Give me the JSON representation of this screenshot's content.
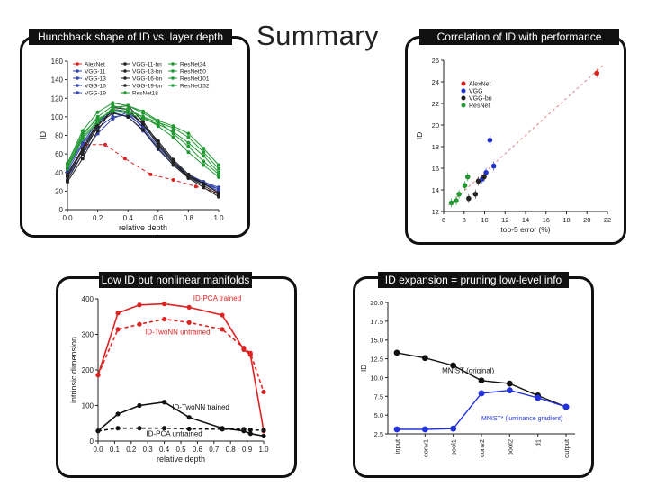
{
  "page_title": "Summary",
  "panels": {
    "tl_title": "Hunchback shape of ID vs. layer depth",
    "tr_title": "Correlation of ID with performance",
    "bl_title": "Low ID but nonlinear manifolds",
    "br_title": "ID expansion = pruning low-level info"
  },
  "chart_data": [
    {
      "type": "line",
      "title": "Hunchback shape of ID vs. layer depth",
      "xlabel": "relative depth",
      "ylabel": "ID",
      "xlim": [
        0,
        1
      ],
      "ylim": [
        0,
        160
      ],
      "xticks": [
        "0.0",
        "0.2",
        "0.4",
        "0.6",
        "0.8",
        "1.0"
      ],
      "yticks": [
        "0",
        "20",
        "40",
        "60",
        "80",
        "100",
        "120",
        "140",
        "160"
      ],
      "legend": [
        {
          "label": "AlexNet",
          "color": "#dd2222"
        },
        {
          "label": "VGG-11",
          "color": "#3344aa"
        },
        {
          "label": "VGG-13",
          "color": "#3344aa"
        },
        {
          "label": "VGG-16",
          "color": "#3344aa"
        },
        {
          "label": "VGG-19",
          "color": "#3344aa"
        },
        {
          "label": "VGG-11-bn",
          "color": "#222222"
        },
        {
          "label": "VGG-13-bn",
          "color": "#222222"
        },
        {
          "label": "VGG-16-bn",
          "color": "#222222"
        },
        {
          "label": "VGG-19-bn",
          "color": "#222222"
        },
        {
          "label": "ResNet18",
          "color": "#229933"
        },
        {
          "label": "ResNet34",
          "color": "#229933"
        },
        {
          "label": "ResNet50",
          "color": "#229933"
        },
        {
          "label": "ResNet101",
          "color": "#229933"
        },
        {
          "label": "ResNet152",
          "color": "#229933"
        }
      ],
      "series": [
        {
          "name": "AlexNet",
          "color": "#dd2222",
          "dashed": true,
          "x": [
            0,
            0.12,
            0.25,
            0.38,
            0.55,
            0.7,
            0.85,
            1.0
          ],
          "y": [
            35,
            70,
            70,
            55,
            38,
            32,
            25,
            18
          ]
        },
        {
          "name": "VGG-11",
          "color": "#3344aa",
          "x": [
            0,
            0.1,
            0.2,
            0.3,
            0.4,
            0.5,
            0.6,
            0.7,
            0.8,
            0.9,
            1.0
          ],
          "y": [
            35,
            60,
            82,
            98,
            105,
            92,
            70,
            50,
            35,
            28,
            20
          ]
        },
        {
          "name": "VGG-13",
          "color": "#3344aa",
          "x": [
            0,
            0.1,
            0.2,
            0.3,
            0.4,
            0.5,
            0.6,
            0.7,
            0.8,
            0.9,
            1.0
          ],
          "y": [
            40,
            65,
            88,
            100,
            102,
            90,
            72,
            52,
            38,
            30,
            22
          ]
        },
        {
          "name": "VGG-16",
          "color": "#3344aa",
          "x": [
            0,
            0.1,
            0.2,
            0.3,
            0.4,
            0.5,
            0.6,
            0.7,
            0.8,
            0.9,
            1.0
          ],
          "y": [
            45,
            72,
            95,
            105,
            100,
            85,
            65,
            48,
            35,
            28,
            22
          ]
        },
        {
          "name": "VGG-19",
          "color": "#3344aa",
          "x": [
            0,
            0.1,
            0.2,
            0.3,
            0.4,
            0.5,
            0.6,
            0.7,
            0.8,
            0.9,
            1.0
          ],
          "y": [
            42,
            70,
            92,
            108,
            104,
            88,
            68,
            50,
            36,
            30,
            24
          ]
        },
        {
          "name": "VGG-11-bn",
          "color": "#222222",
          "x": [
            0,
            0.1,
            0.2,
            0.3,
            0.4,
            0.5,
            0.6,
            0.7,
            0.8,
            0.9,
            1.0
          ],
          "y": [
            30,
            55,
            85,
            110,
            112,
            95,
            72,
            52,
            36,
            28,
            18
          ]
        },
        {
          "name": "VGG-13-bn",
          "color": "#222222",
          "x": [
            0,
            0.1,
            0.2,
            0.3,
            0.4,
            0.5,
            0.6,
            0.7,
            0.8,
            0.9,
            1.0
          ],
          "y": [
            32,
            60,
            90,
            108,
            106,
            92,
            70,
            50,
            35,
            26,
            16
          ]
        },
        {
          "name": "VGG-16-bn",
          "color": "#222222",
          "x": [
            0,
            0.1,
            0.2,
            0.3,
            0.4,
            0.5,
            0.6,
            0.7,
            0.8,
            0.9,
            1.0
          ],
          "y": [
            36,
            64,
            92,
            104,
            100,
            86,
            66,
            48,
            34,
            24,
            14
          ]
        },
        {
          "name": "VGG-19-bn",
          "color": "#222222",
          "x": [
            0,
            0.1,
            0.2,
            0.3,
            0.4,
            0.5,
            0.6,
            0.7,
            0.8,
            0.9,
            1.0
          ],
          "y": [
            38,
            66,
            94,
            110,
            108,
            92,
            74,
            54,
            38,
            28,
            18
          ]
        },
        {
          "name": "ResNet18",
          "color": "#229933",
          "x": [
            0,
            0.1,
            0.2,
            0.3,
            0.4,
            0.5,
            0.6,
            0.7,
            0.8,
            0.9,
            1.0
          ],
          "y": [
            45,
            80,
            100,
            112,
            108,
            100,
            90,
            78,
            62,
            48,
            35
          ]
        },
        {
          "name": "ResNet34",
          "color": "#229933",
          "x": [
            0,
            0.1,
            0.2,
            0.3,
            0.4,
            0.5,
            0.6,
            0.7,
            0.8,
            0.9,
            1.0
          ],
          "y": [
            50,
            85,
            105,
            115,
            112,
            104,
            95,
            82,
            68,
            52,
            38
          ]
        },
        {
          "name": "ResNet50",
          "color": "#229933",
          "x": [
            0,
            0.1,
            0.2,
            0.3,
            0.4,
            0.5,
            0.6,
            0.7,
            0.8,
            0.9,
            1.0
          ],
          "y": [
            48,
            82,
            98,
            106,
            104,
            98,
            92,
            84,
            72,
            58,
            40
          ]
        },
        {
          "name": "ResNet101",
          "color": "#229933",
          "x": [
            0,
            0.1,
            0.2,
            0.3,
            0.4,
            0.5,
            0.6,
            0.7,
            0.8,
            0.9,
            1.0
          ],
          "y": [
            46,
            78,
            96,
            108,
            106,
            100,
            94,
            88,
            78,
            62,
            44
          ]
        },
        {
          "name": "ResNet152",
          "color": "#229933",
          "x": [
            0,
            0.1,
            0.2,
            0.3,
            0.4,
            0.5,
            0.6,
            0.7,
            0.8,
            0.9,
            1.0
          ],
          "y": [
            44,
            76,
            94,
            110,
            112,
            106,
            96,
            90,
            82,
            66,
            48
          ]
        }
      ]
    },
    {
      "type": "scatter",
      "title": "Correlation of ID with performance",
      "xlabel": "top-5 error (%)",
      "ylabel": "ID",
      "xlim": [
        5,
        22
      ],
      "ylim": [
        12,
        26
      ],
      "xticks": [
        "6",
        "8",
        "10",
        "12",
        "14",
        "16",
        "18",
        "20",
        "22"
      ],
      "yticks": [
        "12",
        "14",
        "16",
        "18",
        "20",
        "22",
        "24",
        "26"
      ],
      "legend": [
        {
          "label": "AlexNet",
          "color": "#dd2222"
        },
        {
          "label": "VGG",
          "color": "#2233cc"
        },
        {
          "label": "VGG-bn",
          "color": "#222222"
        },
        {
          "label": "ResNet",
          "color": "#229933"
        }
      ],
      "series": [
        {
          "name": "AlexNet",
          "color": "#dd2222",
          "x": [
            20.9
          ],
          "y": [
            24.8
          ]
        },
        {
          "name": "VGG",
          "color": "#2233cc",
          "x": [
            9.0,
            9.4,
            9.8,
            10.2
          ],
          "y": [
            15.0,
            15.6,
            18.6,
            16.2
          ]
        },
        {
          "name": "VGG-bn",
          "color": "#222222",
          "x": [
            7.6,
            8.3,
            8.6,
            9.2
          ],
          "y": [
            13.2,
            13.6,
            14.8,
            15.2
          ]
        },
        {
          "name": "ResNet",
          "color": "#229933",
          "x": [
            5.8,
            6.3,
            6.6,
            7.2,
            7.5
          ],
          "y": [
            12.8,
            13.0,
            13.6,
            14.4,
            15.2
          ]
        }
      ]
    },
    {
      "type": "line",
      "title": "Low ID but nonlinear manifolds",
      "xlabel": "relative depth",
      "ylabel": "intrinsic dimension",
      "xlim": [
        0,
        1
      ],
      "ylim": [
        0,
        420
      ],
      "xticks": [
        "0.0",
        "0.1",
        "0.2",
        "0.3",
        "0.4",
        "0.5",
        "0.6",
        "0.7",
        "0.8",
        "0.9",
        "1.0"
      ],
      "yticks": [
        "0",
        "100",
        "200",
        "300",
        "400"
      ],
      "annotations": [
        "ID-PCA trained",
        "ID-TwoNN untrained",
        "ID-TwoNN trained",
        "ID-PCA untrained"
      ],
      "series": [
        {
          "name": "ID-PCA trained",
          "color": "#dd2222",
          "x": [
            0,
            0.12,
            0.25,
            0.4,
            0.55,
            0.75,
            0.88,
            0.92,
            1.0
          ],
          "y": [
            195,
            378,
            402,
            405,
            395,
            372,
            270,
            255,
            30
          ]
        },
        {
          "name": "ID-TwoNN untrained",
          "color": "#dd2222",
          "dashed": true,
          "x": [
            0,
            0.12,
            0.25,
            0.4,
            0.55,
            0.75,
            0.88,
            0.92,
            1.0
          ],
          "y": [
            195,
            330,
            345,
            360,
            350,
            330,
            275,
            260,
            145
          ]
        },
        {
          "name": "ID-TwoNN trained",
          "color": "#111111",
          "x": [
            0,
            0.12,
            0.25,
            0.4,
            0.55,
            0.75,
            0.88,
            0.92,
            1.0
          ],
          "y": [
            30,
            80,
            105,
            115,
            70,
            38,
            30,
            22,
            15
          ]
        },
        {
          "name": "ID-PCA untrained",
          "color": "#111111",
          "dashed": true,
          "x": [
            0,
            0.12,
            0.25,
            0.4,
            0.55,
            0.75,
            0.88,
            0.92,
            1.0
          ],
          "y": [
            30,
            38,
            38,
            38,
            36,
            35,
            35,
            33,
            32
          ]
        }
      ]
    },
    {
      "type": "line",
      "title": "ID expansion = pruning low-level info",
      "xlabel": "",
      "ylabel": "ID",
      "ylim": [
        2.5,
        20
      ],
      "yticks": [
        "2.5",
        "5.0",
        "7.5",
        "10.0",
        "12.5",
        "15.0",
        "17.5",
        "20.0"
      ],
      "categories": [
        "input",
        "conv1",
        "pool1",
        "conv2",
        "pool2",
        "d1",
        "output"
      ],
      "annotations": [
        "MNIST (original)",
        "MNIST* (luminance gradient)"
      ],
      "series": [
        {
          "name": "MNIST (original)",
          "color": "#111111",
          "values": [
            13.3,
            12.6,
            11.6,
            9.6,
            9.2,
            7.6,
            6.1
          ]
        },
        {
          "name": "MNIST* (luminance gradient)",
          "color": "#2233dd",
          "values": [
            3.1,
            3.1,
            3.2,
            7.9,
            8.3,
            7.3,
            6.1
          ]
        }
      ]
    }
  ]
}
